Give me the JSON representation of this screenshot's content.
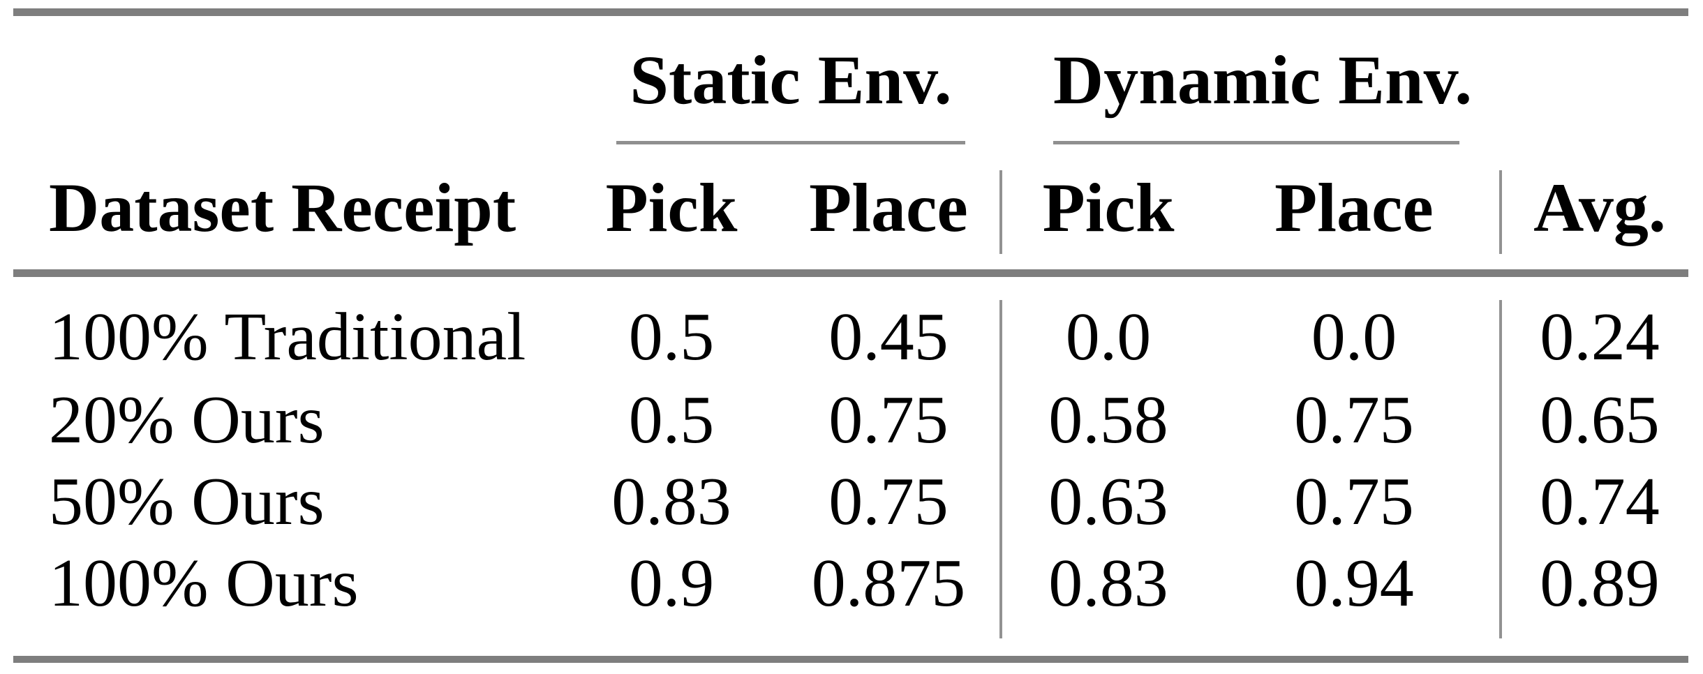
{
  "table": {
    "col_groups": [
      {
        "label": "Static Env."
      },
      {
        "label": "Dynamic Env."
      }
    ],
    "headers": {
      "row_label": "Dataset Receipt",
      "static_pick": "Pick",
      "static_place": "Place",
      "dynamic_pick": "Pick",
      "dynamic_place": "Place",
      "avg": "Avg."
    },
    "rows": [
      {
        "label": "100% Traditional",
        "static_pick": "0.5",
        "static_place": "0.45",
        "dynamic_pick": "0.0",
        "dynamic_place": "0.0",
        "avg": "0.24"
      },
      {
        "label": "20% Ours",
        "static_pick": "0.5",
        "static_place": "0.75",
        "dynamic_pick": "0.58",
        "dynamic_place": "0.75",
        "avg": "0.65"
      },
      {
        "label": "50% Ours",
        "static_pick": "0.83",
        "static_place": "0.75",
        "dynamic_pick": "0.63",
        "dynamic_place": "0.75",
        "avg": "0.74"
      },
      {
        "label": "100% Ours",
        "static_pick": "0.9",
        "static_place": "0.875",
        "dynamic_pick": "0.83",
        "dynamic_place": "0.94",
        "avg": "0.89"
      }
    ]
  },
  "colors": {
    "background": "#ffffff",
    "text": "#000000",
    "rule_heavy": "#7e7e7e",
    "rule_light": "#8f8f8f",
    "vertical_separator": "#929292"
  }
}
